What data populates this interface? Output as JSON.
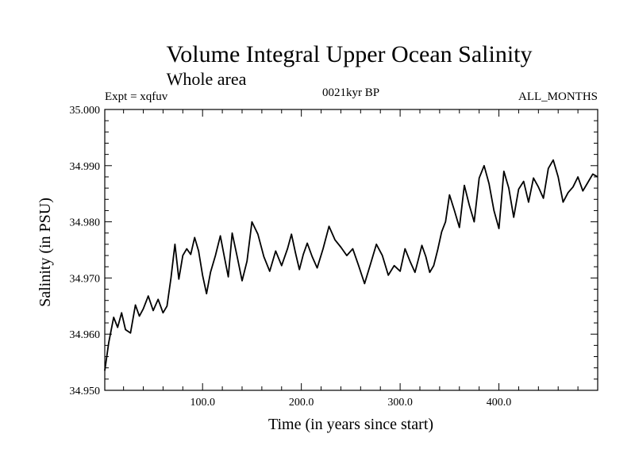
{
  "chart_data": {
    "type": "line",
    "title": "Volume Integral Upper Ocean Salinity",
    "subtitle": "Whole area",
    "annotations": {
      "left": "Expt = xqfuv",
      "center": "0021kyr BP",
      "right": "ALL_MONTHS"
    },
    "xlabel": "Time (in years since start)",
    "ylabel": "Salinity (in PSU)",
    "xlim": [
      1,
      500
    ],
    "ylim": [
      34.95,
      35.0
    ],
    "x_ticks": [
      100,
      200,
      300,
      400
    ],
    "x_tick_labels": [
      "100.0",
      "200.0",
      "300.0",
      "400.0"
    ],
    "y_ticks": [
      34.95,
      34.96,
      34.97,
      34.98,
      34.99,
      35.0
    ],
    "y_tick_labels": [
      "34.950",
      "34.960",
      "34.970",
      "34.980",
      "34.990",
      "35.000"
    ],
    "grid": false,
    "series": [
      {
        "name": "salinity",
        "color": "#000000",
        "x": [
          1,
          5,
          10,
          14,
          18,
          22,
          27,
          32,
          36,
          40,
          45,
          50,
          55,
          60,
          64,
          68,
          72,
          76,
          80,
          84,
          88,
          92,
          96,
          100,
          104,
          108,
          113,
          118,
          122,
          126,
          130,
          135,
          140,
          145,
          150,
          156,
          162,
          168,
          174,
          180,
          186,
          190,
          194,
          198,
          202,
          206,
          211,
          216,
          222,
          228,
          234,
          240,
          246,
          252,
          258,
          264,
          270,
          276,
          282,
          288,
          294,
          300,
          305,
          310,
          315,
          318,
          322,
          326,
          330,
          334,
          338,
          342,
          346,
          350,
          355,
          360,
          365,
          370,
          375,
          380,
          385,
          390,
          395,
          400,
          405,
          410,
          415,
          420,
          425,
          430,
          435,
          440,
          445,
          450,
          455,
          460,
          465,
          470,
          475,
          480,
          485,
          490,
          495,
          500
        ],
        "values": [
          34.9535,
          34.9585,
          34.963,
          34.9612,
          34.9638,
          34.9608,
          34.9602,
          34.9652,
          34.9632,
          34.9645,
          34.9668,
          34.9642,
          34.9662,
          34.9638,
          34.965,
          34.97,
          34.976,
          34.9698,
          34.974,
          34.9752,
          34.9742,
          34.9772,
          34.9748,
          34.9705,
          34.9672,
          34.971,
          34.974,
          34.9775,
          34.9738,
          34.9702,
          34.978,
          34.9738,
          34.9695,
          34.973,
          34.98,
          34.9778,
          34.9738,
          34.9712,
          34.9748,
          34.9722,
          34.9752,
          34.9778,
          34.9745,
          34.9715,
          34.9742,
          34.9762,
          34.9738,
          34.9718,
          34.9752,
          34.9792,
          34.9768,
          34.9755,
          34.974,
          34.9752,
          34.9722,
          34.969,
          34.9725,
          34.976,
          34.974,
          34.9705,
          34.9722,
          34.9712,
          34.9752,
          34.973,
          34.971,
          34.973,
          34.9758,
          34.9738,
          34.971,
          34.9722,
          34.975,
          34.9782,
          34.98,
          34.9848,
          34.982,
          34.979,
          34.9865,
          34.983,
          34.98,
          34.9878,
          34.99,
          34.9868,
          34.982,
          34.9788,
          34.989,
          34.986,
          34.9808,
          34.9858,
          34.9872,
          34.9835,
          34.9878,
          34.9862,
          34.9842,
          34.9895,
          34.991,
          34.988,
          34.9835,
          34.9852,
          34.9862,
          34.988,
          34.9855,
          34.987,
          34.9885,
          34.988
        ]
      }
    ]
  }
}
